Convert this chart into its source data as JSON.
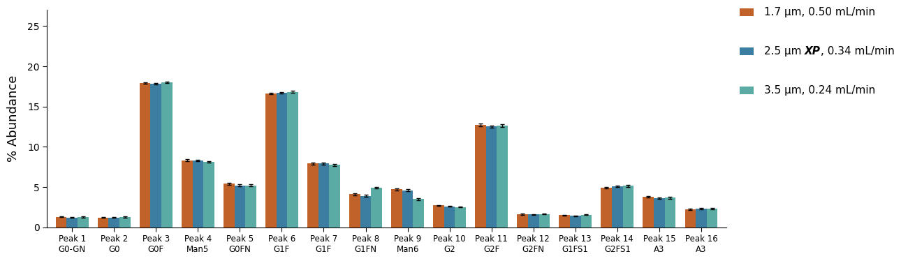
{
  "categories": [
    [
      "Peak 1",
      "G0-GN"
    ],
    [
      "Peak 2",
      "G0"
    ],
    [
      "Peak 3",
      "G0F"
    ],
    [
      "Peak 4",
      "Man5"
    ],
    [
      "Peak 5",
      "G0FN"
    ],
    [
      "Peak 6",
      "G1F"
    ],
    [
      "Peak 7",
      "G1F"
    ],
    [
      "Peak 8",
      "G1FN"
    ],
    [
      "Peak 9",
      "Man6"
    ],
    [
      "Peak 10",
      "G2"
    ],
    [
      "Peak 11",
      "G2F"
    ],
    [
      "Peak 12",
      "G2FN"
    ],
    [
      "Peak 13",
      "G1FS1"
    ],
    [
      "Peak 14",
      "G2FS1"
    ],
    [
      "Peak 15",
      "A3"
    ],
    [
      "Peak 16",
      "A3"
    ]
  ],
  "series": [
    {
      "label": "1.7 μm, 0.50 mL/min",
      "color": "#c0622a",
      "values": [
        1.3,
        1.2,
        17.9,
        8.3,
        5.4,
        16.6,
        7.9,
        4.1,
        4.7,
        2.7,
        12.7,
        1.6,
        1.5,
        4.9,
        3.8,
        2.2
      ],
      "errors": [
        0.05,
        0.05,
        0.12,
        0.12,
        0.12,
        0.12,
        0.1,
        0.12,
        0.12,
        0.06,
        0.15,
        0.06,
        0.06,
        0.1,
        0.09,
        0.07
      ]
    },
    {
      "label": "2.5 μm XP, 0.34 mL/min",
      "color": "#3b7ea1",
      "values": [
        1.2,
        1.2,
        17.8,
        8.3,
        5.2,
        16.7,
        7.9,
        3.9,
        4.6,
        2.6,
        12.5,
        1.6,
        1.4,
        5.1,
        3.6,
        2.3
      ],
      "errors": [
        0.05,
        0.05,
        0.1,
        0.1,
        0.1,
        0.12,
        0.1,
        0.1,
        0.1,
        0.05,
        0.12,
        0.05,
        0.05,
        0.1,
        0.08,
        0.06
      ]
    },
    {
      "label": "3.5 μm, 0.24 mL/min",
      "color": "#5aaba3",
      "values": [
        1.25,
        1.25,
        18.0,
        8.1,
        5.2,
        16.8,
        7.75,
        4.9,
        3.5,
        2.5,
        12.6,
        1.65,
        1.55,
        5.15,
        3.65,
        2.3
      ],
      "errors": [
        0.06,
        0.06,
        0.12,
        0.1,
        0.1,
        0.15,
        0.12,
        0.12,
        0.12,
        0.06,
        0.15,
        0.06,
        0.06,
        0.12,
        0.09,
        0.07
      ]
    }
  ],
  "ylabel": "% Abundance",
  "ylim": [
    0,
    27
  ],
  "yticks": [
    0,
    5,
    10,
    15,
    20,
    25
  ],
  "background_color": "#ffffff",
  "bar_width": 0.26,
  "legend_colors": [
    "#c0622a",
    "#3b7ea1",
    "#5aaba3"
  ],
  "legend_line1": "1.7 μm, 0.50 mL/min",
  "legend_line2_pre": "2.5 μm ",
  "legend_line2_bold": "XP",
  "legend_line2_post": ", 0.34 mL/min",
  "legend_line3": "3.5 μm, 0.24 mL/min"
}
